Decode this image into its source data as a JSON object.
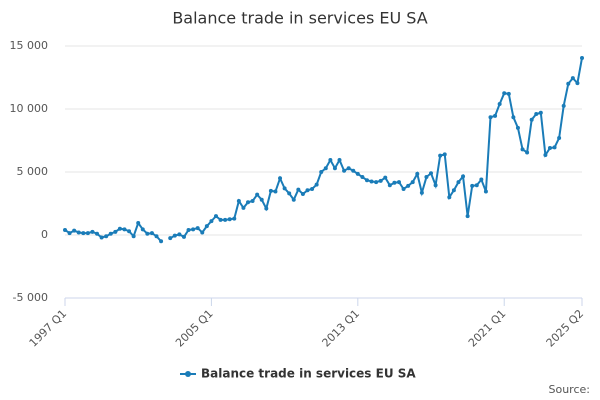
{
  "chart_data": {
    "type": "line",
    "title": "Balance trade in services EU SA",
    "categories": [
      "1997 Q1",
      null,
      null,
      null,
      null,
      null,
      null,
      null,
      null,
      null,
      null,
      null,
      null,
      null,
      null,
      null,
      null,
      null,
      null,
      null,
      null,
      null,
      null,
      null,
      null,
      null,
      null,
      null,
      null,
      null,
      null,
      null,
      "2005 Q1",
      null,
      null,
      null,
      null,
      null,
      null,
      null,
      null,
      null,
      null,
      null,
      null,
      null,
      null,
      null,
      null,
      null,
      null,
      null,
      null,
      null,
      null,
      null,
      null,
      null,
      null,
      null,
      null,
      null,
      null,
      null,
      "2013 Q1",
      null,
      null,
      null,
      null,
      null,
      null,
      null,
      null,
      null,
      null,
      null,
      null,
      null,
      null,
      null,
      null,
      null,
      null,
      null,
      null,
      null,
      null,
      null,
      null,
      null,
      null,
      null,
      null,
      null,
      null,
      null,
      "2021 Q1",
      null,
      null,
      null,
      null,
      null,
      null,
      null,
      null,
      null,
      null,
      null,
      null,
      null,
      null,
      null,
      null,
      "2025 Q2"
    ],
    "series": [
      {
        "name": "Balance trade in services EU SA",
        "color": "#1a7cb8",
        "values": [
          400,
          150,
          350,
          200,
          150,
          150,
          250,
          100,
          -200,
          -100,
          100,
          250,
          500,
          450,
          300,
          -100,
          950,
          450,
          100,
          150,
          -100,
          -500,
          null,
          -250,
          -50,
          50,
          -150,
          400,
          450,
          550,
          200,
          700,
          1100,
          1500,
          1200,
          1200,
          1250,
          1300,
          2700,
          2150,
          2600,
          2700,
          3200,
          2800,
          2100,
          3500,
          3450,
          4500,
          3700,
          3300,
          2800,
          3600,
          3250,
          3550,
          3650,
          4000,
          5000,
          5300,
          5950,
          5300,
          5950,
          5100,
          5300,
          5100,
          4850,
          4600,
          4350,
          4250,
          4200,
          4300,
          4550,
          3950,
          4150,
          4200,
          3650,
          3900,
          4200,
          4850,
          3350,
          4600,
          4900,
          3950,
          6300,
          6400,
          3000,
          3550,
          4200,
          4650,
          1500,
          3900,
          3950,
          4400,
          3450,
          9350,
          9450,
          10400,
          11250,
          11200,
          9350,
          8500,
          6800,
          6550,
          9150,
          9600,
          9700,
          6350,
          6900,
          6950,
          7700,
          10250,
          12000,
          12450,
          12050,
          14050
        ]
      }
    ],
    "ylim": [
      -5000,
      15000
    ],
    "yticks": [
      {
        "value": -5000,
        "label": "-5 000"
      },
      0,
      {
        "value": 5000,
        "label": "5 000"
      },
      {
        "value": 10000,
        "label": "10 000"
      },
      {
        "value": 15000,
        "label": "15 000"
      }
    ],
    "grid": true,
    "legend": "bottom",
    "source": "Source:"
  }
}
